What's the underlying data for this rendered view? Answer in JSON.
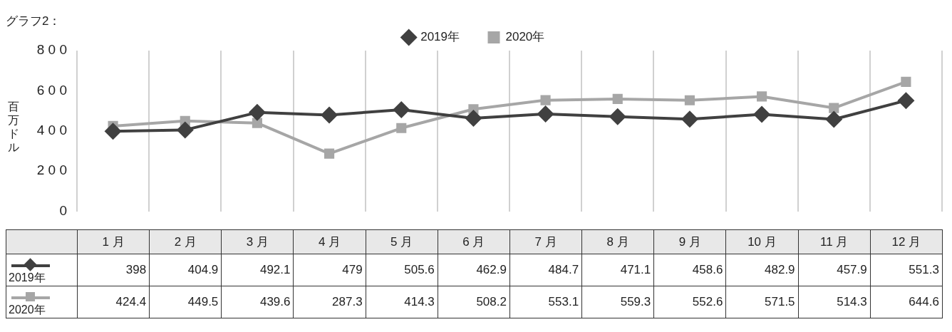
{
  "chart_data": {
    "type": "line",
    "title": "グラフ2：",
    "ylabel": "百万ドル",
    "categories": [
      "1 月",
      "2 月",
      "3 月",
      "4 月",
      "5 月",
      "6 月",
      "7 月",
      "8 月",
      "9 月",
      "10 月",
      "11 月",
      "12 月"
    ],
    "series": [
      {
        "name": "2019年",
        "color": "#404040",
        "marker": "diamond",
        "values": [
          398,
          404.9,
          492.1,
          479,
          505.6,
          462.9,
          484.7,
          471.1,
          458.6,
          482.9,
          457.9,
          551.3
        ]
      },
      {
        "name": "2020年",
        "color": "#a6a6a6",
        "marker": "square",
        "values": [
          424.4,
          449.5,
          439.6,
          287.3,
          414.3,
          508.2,
          553.1,
          559.3,
          552.6,
          571.5,
          514.3,
          644.6
        ]
      }
    ],
    "ylim": [
      0,
      800
    ],
    "yticks": [
      0,
      200,
      400,
      600,
      800
    ],
    "grid": "x",
    "legend": "top",
    "tick_labels": "y",
    "data_labels": true
  }
}
